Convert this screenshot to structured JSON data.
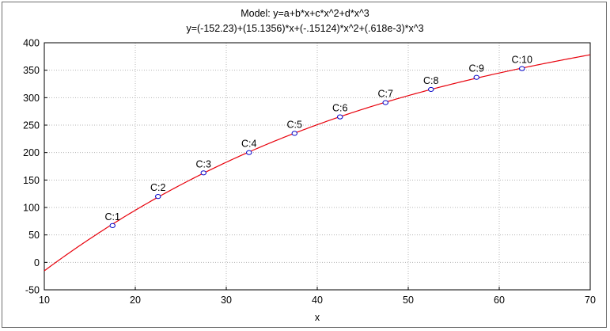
{
  "chart_data": {
    "type": "scatter",
    "title": "Model: y=a+b*x+c*x^2+d*x^3",
    "subtitle": "y=(-152.23)+(15.1356)*x+(-.15124)*x^2+(.618e-3)*x^3",
    "xlabel": "x",
    "ylabel": "",
    "xlim": [
      10,
      70
    ],
    "ylim": [
      -50,
      400
    ],
    "xticks": [
      10,
      20,
      30,
      40,
      50,
      60,
      70
    ],
    "yticks": [
      -50,
      0,
      50,
      100,
      150,
      200,
      250,
      300,
      350,
      400
    ],
    "grid": true,
    "points": [
      {
        "label": "C:1",
        "x": 17.5,
        "y": 67
      },
      {
        "label": "C:2",
        "x": 22.5,
        "y": 120
      },
      {
        "label": "C:3",
        "x": 27.5,
        "y": 163
      },
      {
        "label": "C:4",
        "x": 32.5,
        "y": 200
      },
      {
        "label": "C:5",
        "x": 37.5,
        "y": 235
      },
      {
        "label": "C:6",
        "x": 42.5,
        "y": 265
      },
      {
        "label": "C:7",
        "x": 47.5,
        "y": 291
      },
      {
        "label": "C:8",
        "x": 52.5,
        "y": 315
      },
      {
        "label": "C:9",
        "x": 57.5,
        "y": 337
      },
      {
        "label": "C:10",
        "x": 62.5,
        "y": 353
      }
    ],
    "fit": {
      "model": "cubic",
      "coefficients": {
        "a": -152.23,
        "b": 15.1356,
        "c": -0.15124,
        "d": 0.000618
      }
    },
    "colors": {
      "fit_line": "#e8000b",
      "point_stroke": "#0000c8",
      "grid": "#b4b4b4",
      "axis": "#000000"
    }
  }
}
